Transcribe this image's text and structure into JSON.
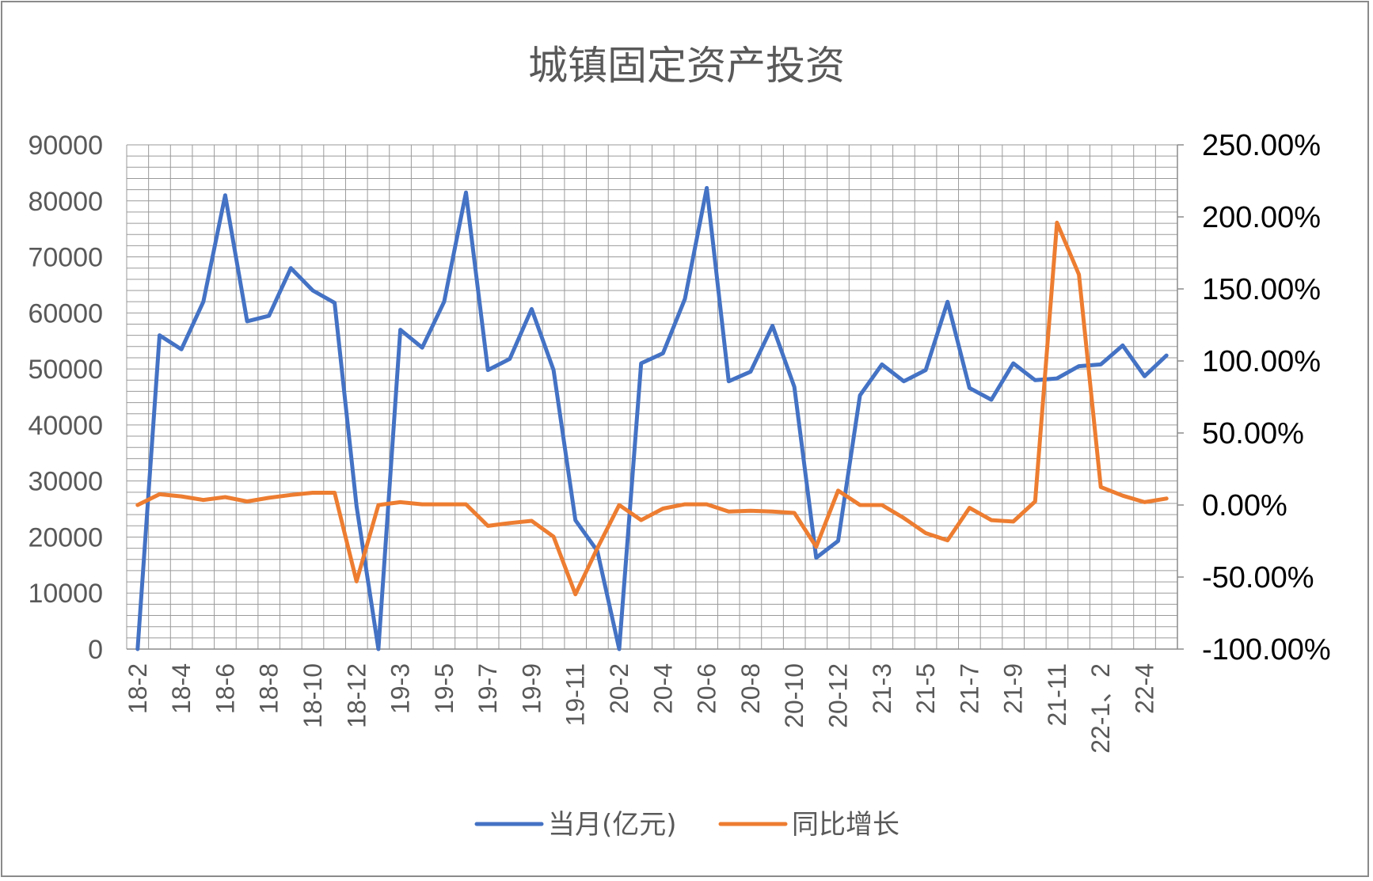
{
  "chart_data": {
    "type": "line",
    "title": "城镇固定资产投资",
    "x": [
      "18-2",
      "18-3",
      "18-4",
      "18-5",
      "18-6",
      "18-7",
      "18-8",
      "18-9",
      "18-10",
      "18-11",
      "18-12",
      "19-1、2",
      "19-3",
      "19-4",
      "19-5",
      "19-6",
      "19-7",
      "19-8",
      "19-9",
      "19-10",
      "19-11",
      "19-12",
      "20-2",
      "20-3",
      "20-4",
      "20-5",
      "20-6",
      "20-7",
      "20-8",
      "20-9",
      "20-10",
      "20-11",
      "20-12",
      "21-1、2",
      "21-3",
      "21-4",
      "21-5",
      "21-6",
      "21-7",
      "21-8",
      "21-9",
      "21-10",
      "21-11",
      "21-12",
      "22-1、2",
      "22-3",
      "22-4",
      "22-5"
    ],
    "x_tick_labels": [
      "18-2",
      "18-4",
      "18-6",
      "18-8",
      "18-10",
      "18-12",
      "19-3",
      "19-5",
      "19-7",
      "19-9",
      "19-11",
      "20-2",
      "20-4",
      "20-6",
      "20-8",
      "20-10",
      "20-12",
      "21-3",
      "21-5",
      "21-7",
      "21-9",
      "21-11",
      "22-1、2",
      "22-4"
    ],
    "y_left": {
      "min": 0,
      "max": 90000,
      "step": 10000,
      "tick_labels": [
        "0",
        "10000",
        "20000",
        "30000",
        "40000",
        "50000",
        "60000",
        "70000",
        "80000",
        "90000"
      ]
    },
    "y_right": {
      "min": -100,
      "max": 250,
      "step": 50,
      "tick_labels": [
        "-100.00%",
        "-50.00%",
        "0.00%",
        "50.00%",
        "100.00%",
        "150.00%",
        "200.00%",
        "250.00%"
      ]
    },
    "series": [
      {
        "name": "当月(亿元)",
        "axis": "left",
        "color": "#4472C4",
        "values": [
          0,
          56000,
          53500,
          62000,
          81000,
          58500,
          59500,
          68000,
          64000,
          61800,
          25500,
          0,
          57000,
          53800,
          62000,
          81500,
          49800,
          51800,
          60700,
          49800,
          23000,
          17500,
          0,
          51000,
          52800,
          62500,
          82300,
          47800,
          49500,
          57700,
          46800,
          16300,
          19300,
          45300,
          50800,
          47800,
          49800,
          62000,
          46600,
          44500,
          51000,
          48000,
          48300,
          50500,
          50800,
          54200,
          48700,
          52400
        ]
      },
      {
        "name": "同比增长",
        "axis": "right",
        "color": "#ED7D31",
        "values": [
          0.0,
          7.5,
          6.0,
          3.5,
          5.5,
          2.5,
          5.0,
          7.0,
          8.5,
          8.5,
          -53.0,
          0.0,
          2.0,
          0.5,
          0.5,
          0.5,
          -14.5,
          -12.5,
          -11.0,
          -22.0,
          -62.0,
          -30.0,
          0.0,
          -10.5,
          -2.5,
          0.5,
          0.5,
          -4.5,
          -4.0,
          -4.5,
          -5.5,
          -29.0,
          10.0,
          0.0,
          0.0,
          -9.0,
          -19.5,
          -24.5,
          -2.0,
          -10.5,
          -11.5,
          2.5,
          196.0,
          160.0,
          12.5,
          6.5,
          2.0,
          4.5
        ]
      }
    ],
    "grid": true,
    "legend_position": "bottom"
  }
}
